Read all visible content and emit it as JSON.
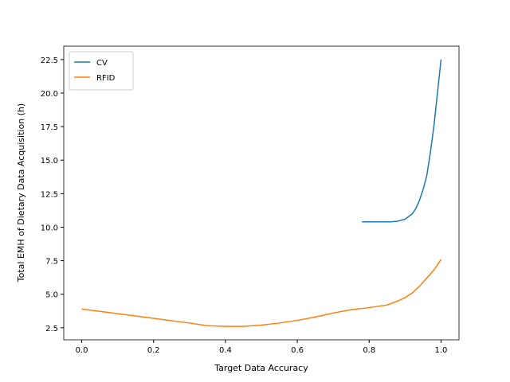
{
  "chart_data": {
    "type": "line",
    "xlabel": "Target Data Accuracy",
    "ylabel": "Total EMH of Dietary Data Acquisition (h)",
    "xlim": [
      -0.05,
      1.05
    ],
    "ylim": [
      1.6,
      23.5
    ],
    "xticks": [
      {
        "value": 0,
        "label": "0.0"
      },
      0.2,
      0.4,
      0.6,
      0.8,
      {
        "value": 1,
        "label": "1.0"
      }
    ],
    "yticks": [
      2.5,
      {
        "value": 5,
        "label": "5.0"
      },
      7.5,
      {
        "value": 10,
        "label": "10.0"
      },
      12.5,
      {
        "value": 15,
        "label": "15.0"
      },
      17.5,
      {
        "value": 20,
        "label": "20.0"
      },
      22.5
    ],
    "legend": "upper left",
    "series": [
      {
        "name": "CV",
        "color": "#1f77b4",
        "x": [
          0.78,
          0.82,
          0.86,
          0.88,
          0.9,
          0.91,
          0.92,
          0.93,
          0.94,
          0.95,
          0.96,
          0.97,
          0.98,
          0.99,
          1.0
        ],
        "values": [
          10.4,
          10.4,
          10.4,
          10.45,
          10.6,
          10.8,
          11.0,
          11.4,
          12.0,
          12.8,
          13.8,
          15.5,
          17.5,
          20.0,
          22.5
        ]
      },
      {
        "name": "RFID",
        "color": "#ff7f0e",
        "x": [
          0,
          0.1,
          0.2,
          0.3,
          0.35,
          0.4,
          0.45,
          0.5,
          0.55,
          0.6,
          0.65,
          0.7,
          0.75,
          0.8,
          0.85,
          0.88,
          0.9,
          0.92,
          0.94,
          0.96,
          0.98,
          1.0
        ],
        "values": [
          3.9,
          3.55,
          3.2,
          2.85,
          2.65,
          2.6,
          2.6,
          2.7,
          2.85,
          3.05,
          3.3,
          3.6,
          3.85,
          4.0,
          4.2,
          4.5,
          4.75,
          5.1,
          5.6,
          6.2,
          6.8,
          7.6
        ]
      }
    ]
  }
}
